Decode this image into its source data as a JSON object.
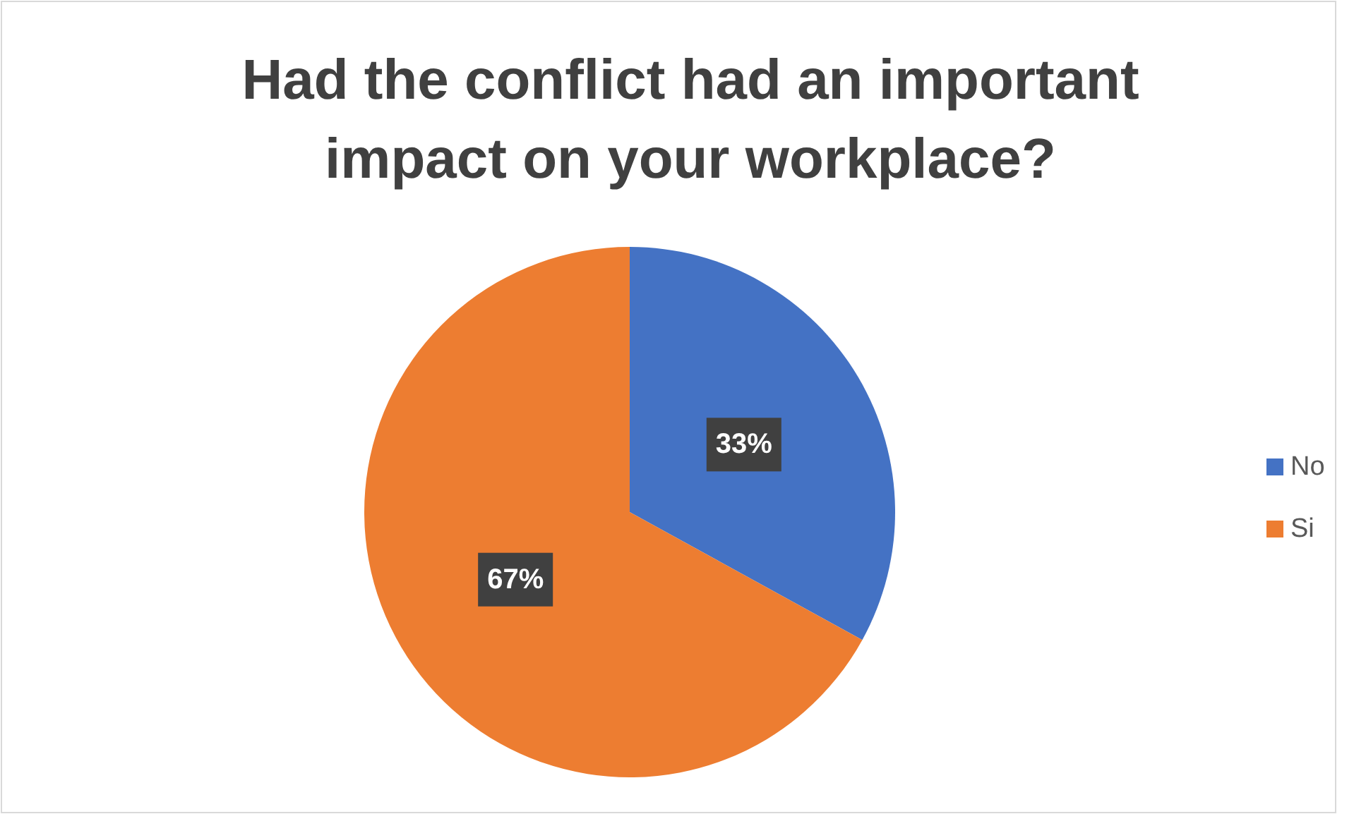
{
  "chart_data": {
    "type": "pie",
    "title": "Had the conflict had an important impact on your workplace?",
    "categories": [
      "No",
      "Si"
    ],
    "values": [
      33,
      67
    ],
    "colors": [
      "#4472c4",
      "#ed7d31"
    ],
    "value_labels": [
      "33%",
      "67%"
    ],
    "legend": "right"
  }
}
